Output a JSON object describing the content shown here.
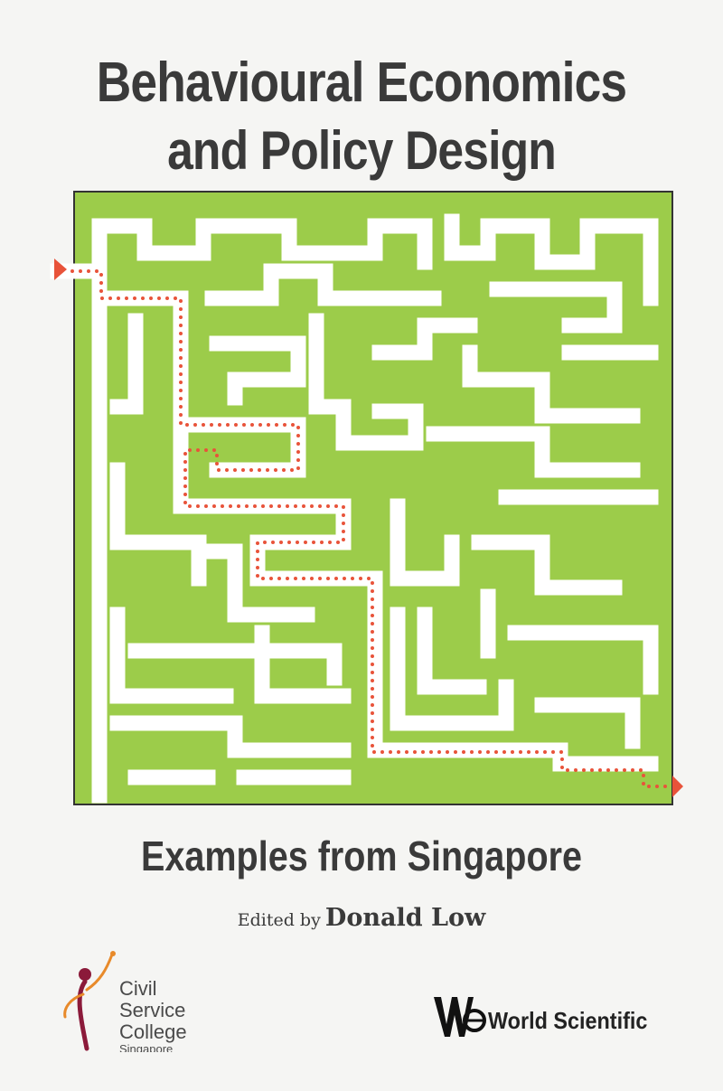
{
  "cover": {
    "title_line1": "Behavioural Economics",
    "title_line2": "and Policy Design",
    "subtitle": "Examples from Singapore",
    "editor_prefix": "Edited by",
    "editor_name": "Donald Low"
  },
  "publishers": {
    "csc_line1": "Civil",
    "csc_line2": "Service",
    "csc_line3": "College",
    "csc_line4": "Singapore",
    "ws_name": "World Scientific"
  },
  "colors": {
    "maze_green": "#9ccc4a",
    "maze_outline": "#333333",
    "path_dots": "#e8533a",
    "text_dark": "#3a3a3a"
  },
  "icons": [
    "maze-illustration",
    "entry-arrow-icon",
    "exit-arrow-icon",
    "csc-figure-logo-icon",
    "world-scientific-logo-icon"
  ]
}
